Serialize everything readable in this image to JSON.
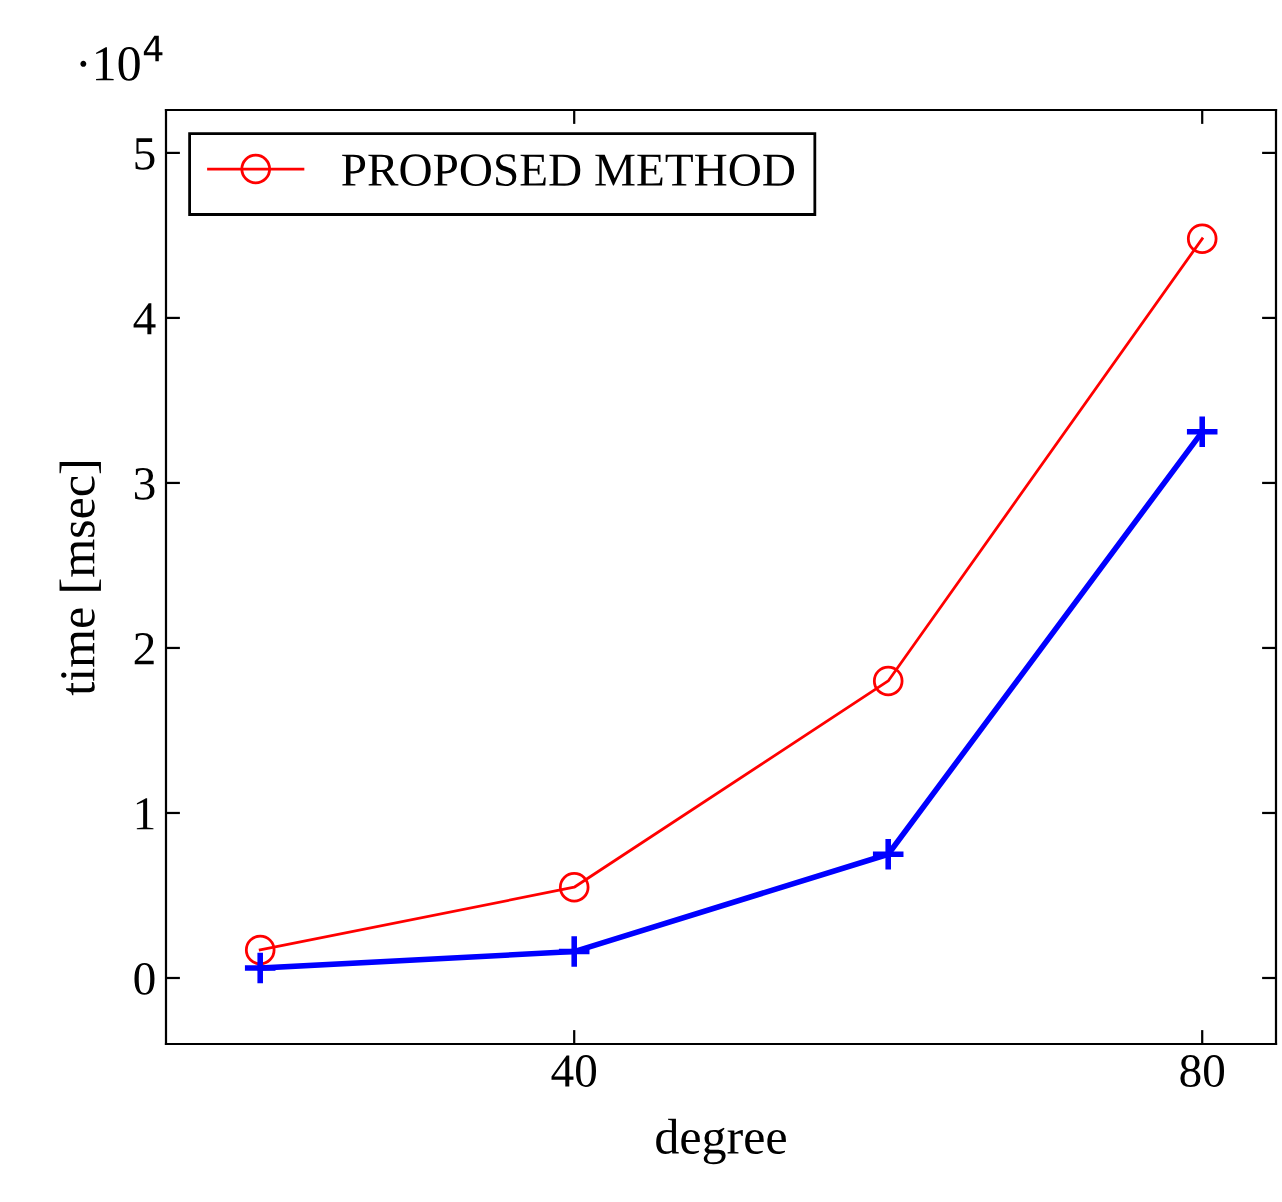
{
  "chart_data": {
    "type": "line",
    "xlabel": "degree",
    "ylabel": "time [msec]",
    "annotations": [
      "·10$^{4}$"
    ],
    "x": [
      20,
      40,
      60,
      80
    ],
    "series": [
      {
        "name": "PROPOSED METHOD",
        "color": "#ff0000",
        "marker": "circle",
        "values": [
          0.17,
          0.55,
          1.8,
          4.48
        ]
      },
      {
        "color": "#0000ff",
        "marker": "cross",
        "values": [
          0.06,
          0.16,
          0.75,
          3.31
        ]
      }
    ],
    "xlim": [
      14,
      84.7
    ],
    "xticks": [
      40,
      80
    ],
    "ylim": [
      -0.4,
      5.26
    ],
    "yticks": [
      0,
      1,
      2,
      3,
      4,
      5
    ],
    "grid": false,
    "legend": "top left"
  }
}
